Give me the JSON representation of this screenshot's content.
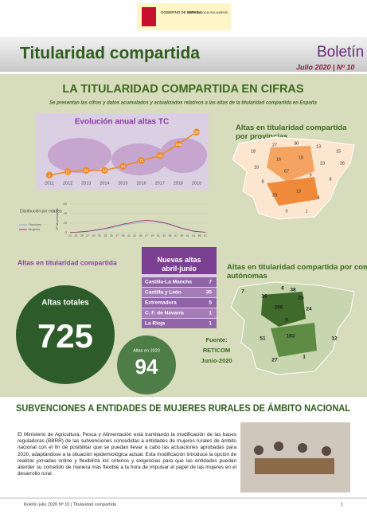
{
  "header": {
    "gov": "GOBIERNO DE ESPAÑA",
    "ministry": "MINISTERIO DE AGRICULTURA, PESCA Y ALIMENTACIÓN"
  },
  "title": "Titularidad compartida",
  "bulletin": "Boletín",
  "issue": "Julio 2020 | Nº 10",
  "section": {
    "heading": "LA TITULARIDAD COMPARTIDA EN CIFRAS",
    "subtitle": "Se presentan las cifras y datos acumulados y actualizados relativos a las altas de la titularidad compartida en España"
  },
  "annual_chart": {
    "type": "line",
    "title": "Evolución anual altas TC",
    "x": [
      "2011",
      "2012",
      "2013",
      "2014",
      "2015",
      "2016",
      "2017",
      "2018",
      "2019"
    ],
    "values": [
      1,
      17,
      24,
      24,
      44,
      71,
      95,
      149,
      208
    ],
    "color": "#f08a24",
    "ylim": [
      0,
      230
    ]
  },
  "age_chart": {
    "type": "line",
    "title": "Distribución por edades",
    "y_label": "Nº de personas",
    "categories": [
      "21",
      "23",
      "25",
      "27",
      "29",
      "31",
      "33",
      "35",
      "37",
      "39",
      "41",
      "43",
      "45",
      "47",
      "49",
      "51",
      "53",
      "55",
      "57",
      "59",
      "61",
      "63",
      "65",
      "67"
    ],
    "series": [
      {
        "name": "Hombres",
        "color": "#7fa8d8",
        "values": [
          1,
          1,
          2,
          3,
          4,
          6,
          8,
          10,
          13,
          16,
          18,
          20,
          22,
          24,
          24,
          22,
          20,
          18,
          14,
          10,
          7,
          4,
          2,
          1
        ]
      },
      {
        "name": "Mujeres",
        "color": "#b0306a",
        "values": [
          0,
          1,
          2,
          3,
          5,
          7,
          9,
          12,
          15,
          18,
          20,
          23,
          25,
          26,
          25,
          23,
          21,
          17,
          13,
          9,
          6,
          3,
          2,
          1
        ]
      }
    ],
    "ylim": [
      0,
      60
    ],
    "yticks": [
      0,
      20,
      40,
      60
    ]
  },
  "province_map": {
    "title": "Altas en titularidad compartida por provincias",
    "values": [
      "18",
      "27",
      "30",
      "13",
      "15",
      "10",
      "16",
      "10",
      "23",
      "26",
      "8",
      "67",
      "9",
      "8",
      "29",
      "13",
      "4",
      "5",
      "1"
    ]
  },
  "totals": {
    "heading": "Altas en titularidad compartida",
    "total_label": "Altas totales",
    "total": "725",
    "year_label": "Altas en 2020",
    "year_total": "94"
  },
  "new_altas": {
    "title": "Nuevas altas abril-junio",
    "rows": [
      [
        "Castilla-La Mancha",
        "7"
      ],
      [
        "Castilla y León",
        "35"
      ],
      [
        "Extremadura",
        "5"
      ],
      [
        "C. F. de Navarra",
        "1"
      ],
      [
        "La Rioja",
        "1"
      ]
    ]
  },
  "community_map": {
    "title": "Altas en titularidad compartida por comunidades autónomas",
    "values": [
      "7",
      "18",
      "6",
      "38",
      "25",
      "24",
      "296",
      "9",
      "51",
      "193",
      "12",
      "27",
      "1"
    ]
  },
  "source": {
    "label": "Fuente:",
    "name": "RETICOM",
    "date": "Junio-2020"
  },
  "article": {
    "heading": "SUBVENCIONES A ENTIDADES DE MUJERES RURALES DE ÁMBITO NACIONAL",
    "body": "El Ministerio de Agricultura, Pesca y Alimentación está tramitando la modificación de las bases reguladoras (BBRR) de las subvenciones concedidas a entidades de mujeres rurales de ámbito nacional con el fin de posibilitar que se puedan llevar a cabo las actuaciones aprobadas para 2020, adaptándose a la situación epidemiológica actual. Esta modificación introduce la opción de realizar jornadas online y flexibiliza los criterios y exigencias para que las entidades puedan atender su cometido de manera más flexible a la hora de impulsar el papel de las mujeres en el desarrollo rural."
  },
  "footer": {
    "text": "Boletín julio 2020 Nº 10 | Titularidad compartida",
    "page": "1"
  }
}
